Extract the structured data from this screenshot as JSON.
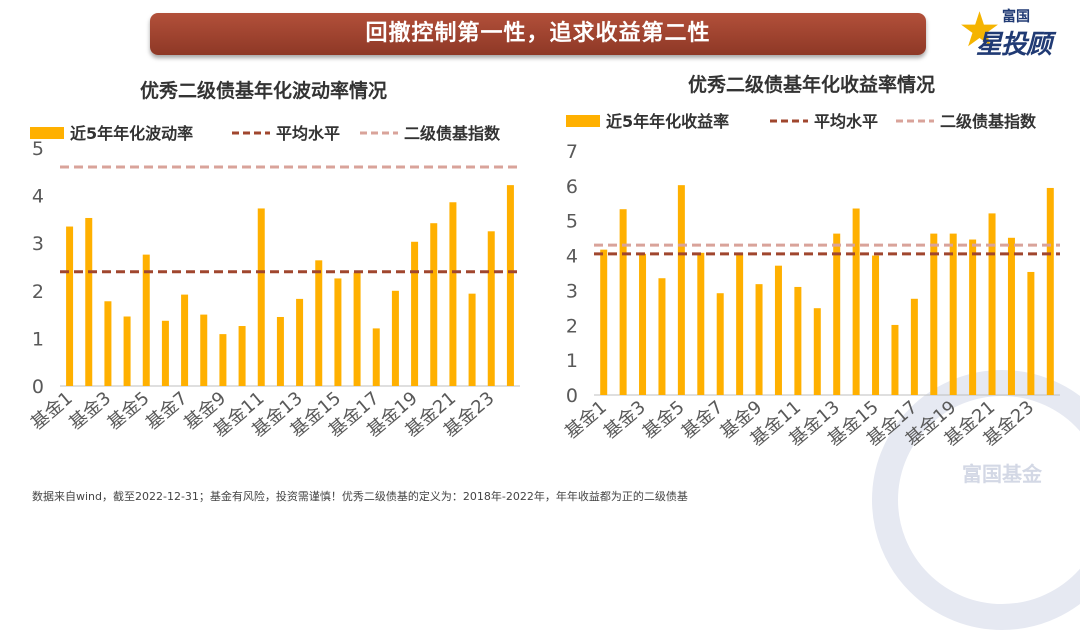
{
  "banner": {
    "title": "回撤控制第一性，追求收益第二性"
  },
  "logo": {
    "top": "富国",
    "main": "星投顾"
  },
  "footnote": "数据来自wind，截至2022-12-31；基金有风险，投资需谨慎！优秀二级债基的定义为：2018年-2022年，年年收益都为正的二级债基",
  "watermark": "富国基金",
  "colors": {
    "bar": "#FFB000",
    "avg": "#A0462E",
    "index": "#D9A39A",
    "axis": "#BFBFBF",
    "text": "#595959"
  },
  "chart_data": [
    {
      "type": "bar",
      "title": "优秀二级债基年化波动率情况",
      "categories": [
        "基金1",
        "基金2",
        "基金3",
        "基金4",
        "基金5",
        "基金6",
        "基金7",
        "基金8",
        "基金9",
        "基金10",
        "基金11",
        "基金12",
        "基金13",
        "基金14",
        "基金15",
        "基金16",
        "基金17",
        "基金18",
        "基金19",
        "基金20",
        "基金21",
        "基金22",
        "基金23",
        "基金24"
      ],
      "tick_labels": [
        "基金1",
        "基金3",
        "基金5",
        "基金7",
        "基金9",
        "基金11",
        "基金13",
        "基金15",
        "基金17",
        "基金19",
        "基金21",
        "基金23"
      ],
      "series": [
        {
          "name": "近5年年化波动率",
          "values": [
            3.35,
            3.53,
            1.78,
            1.46,
            2.76,
            1.37,
            1.92,
            1.5,
            1.09,
            1.26,
            3.73,
            1.45,
            1.83,
            2.64,
            2.26,
            2.38,
            1.21,
            2.0,
            3.03,
            3.42,
            3.86,
            1.94,
            3.25,
            4.22
          ]
        }
      ],
      "reference_lines": [
        {
          "name": "平均水平",
          "value": 2.4,
          "style": "dashed"
        },
        {
          "name": "二级债基指数",
          "value": 4.6,
          "style": "dashed"
        }
      ],
      "yticks": [
        0,
        1,
        2,
        3,
        4,
        5
      ],
      "ylim": [
        0,
        5
      ],
      "legend": "top"
    },
    {
      "type": "bar",
      "title": "优秀二级债基年化收益率情况",
      "categories": [
        "基金1",
        "基金2",
        "基金3",
        "基金4",
        "基金5",
        "基金6",
        "基金7",
        "基金8",
        "基金9",
        "基金10",
        "基金11",
        "基金12",
        "基金13",
        "基金14",
        "基金15",
        "基金16",
        "基金17",
        "基金18",
        "基金19",
        "基金20",
        "基金21",
        "基金22",
        "基金23",
        "基金24"
      ],
      "tick_labels": [
        "基金1",
        "基金3",
        "基金5",
        "基金7",
        "基金9",
        "基金11",
        "基金13",
        "基金15",
        "基金17",
        "基金19",
        "基金21",
        "基金23"
      ],
      "series": [
        {
          "name": "近5年年化收益率",
          "values": [
            4.17,
            5.33,
            4.05,
            3.35,
            6.02,
            4.08,
            2.92,
            4.08,
            3.18,
            3.71,
            3.1,
            2.49,
            4.63,
            5.35,
            4.0,
            2.01,
            2.76,
            4.63,
            4.63,
            4.46,
            5.21,
            4.51,
            3.53,
            5.94
          ]
        }
      ],
      "reference_lines": [
        {
          "name": "平均水平",
          "value": 4.05,
          "style": "dashed"
        },
        {
          "name": "二级债基指数",
          "value": 4.3,
          "style": "dashed"
        }
      ],
      "yticks": [
        0,
        1,
        2,
        3,
        4,
        5,
        6,
        7
      ],
      "ylim": [
        0,
        7
      ],
      "legend": "top"
    }
  ]
}
